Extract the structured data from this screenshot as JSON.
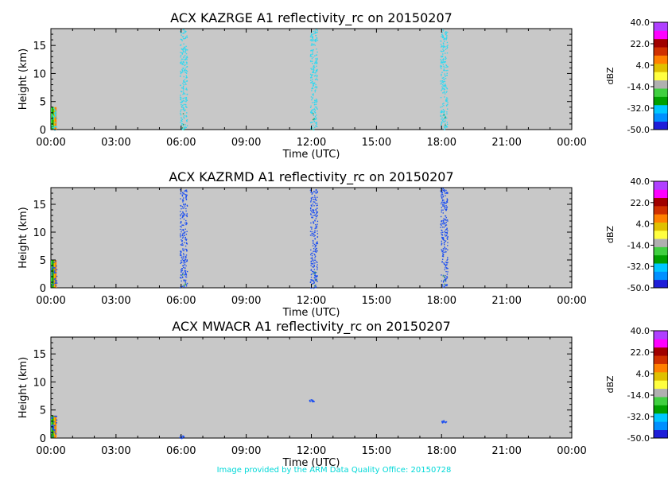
{
  "colorbar": {
    "unit": "dBZ",
    "ticks": [
      "40.0",
      "22.0",
      "4.0",
      "-14.0",
      "-32.0",
      "-50.0"
    ],
    "colors": [
      "#1e1ed8",
      "#0090ff",
      "#00c8ff",
      "#00a000",
      "#40d040",
      "#b0b0b0",
      "#ffff40",
      "#e0c000",
      "#ff8000",
      "#d03000",
      "#a00000",
      "#ff00ff",
      "#b040ff"
    ]
  },
  "credit": "Image provided by the ARM Data Quality Office: 20150728",
  "chart_data": [
    {
      "type": "heatmap",
      "title": "ACX KAZRGE A1 reflectivity_rc on 20150207",
      "xlabel": "Time (UTC)",
      "ylabel": "Height (km)",
      "xticks": [
        "00:00",
        "03:00",
        "06:00",
        "09:00",
        "12:00",
        "15:00",
        "18:00",
        "21:00",
        "00:00"
      ],
      "xlim": [
        0,
        24
      ],
      "ylim": [
        0,
        18
      ],
      "yticks": [
        "0",
        "5",
        "10",
        "15"
      ],
      "background": "#c8c8c8",
      "point_color": "#30d8f0",
      "features": [
        {
          "time_range": [
            0.0,
            0.25
          ],
          "height_range": [
            0,
            4
          ],
          "description": "near-surface echo"
        },
        {
          "time_center": 6.1,
          "height_range": [
            0,
            18
          ]
        },
        {
          "time_center": 12.1,
          "height_range": [
            0,
            18
          ]
        },
        {
          "time_center": 18.1,
          "height_range": [
            0,
            18
          ]
        }
      ]
    },
    {
      "type": "heatmap",
      "title": "ACX KAZRMD A1 reflectivity_rc on 20150207",
      "xlabel": "Time (UTC)",
      "ylabel": "Height (km)",
      "xticks": [
        "00:00",
        "03:00",
        "06:00",
        "09:00",
        "12:00",
        "15:00",
        "18:00",
        "21:00",
        "00:00"
      ],
      "xlim": [
        0,
        24
      ],
      "ylim": [
        0,
        18
      ],
      "yticks": [
        "0",
        "5",
        "10",
        "15"
      ],
      "background": "#c8c8c8",
      "point_color": "#1e50f0",
      "features": [
        {
          "time_range": [
            0.0,
            0.25
          ],
          "height_range": [
            0,
            5
          ]
        },
        {
          "time_center": 6.1,
          "height_range": [
            0,
            18
          ]
        },
        {
          "time_center": 12.1,
          "height_range": [
            0,
            18
          ]
        },
        {
          "time_center": 18.1,
          "height_range": [
            0,
            18
          ]
        }
      ]
    },
    {
      "type": "heatmap",
      "title": "ACX MWACR A1 reflectivity_rc on 20150207",
      "xlabel": "Time (UTC)",
      "ylabel": "Height (km)",
      "xticks": [
        "00:00",
        "03:00",
        "06:00",
        "09:00",
        "12:00",
        "15:00",
        "18:00",
        "21:00",
        "00:00"
      ],
      "xlim": [
        0,
        24
      ],
      "ylim": [
        0,
        18
      ],
      "yticks": [
        "0",
        "5",
        "10",
        "15"
      ],
      "background": "#c8c8c8",
      "point_color": "#1e50f0",
      "features": [
        {
          "time_range": [
            0.0,
            0.25
          ],
          "height_range": [
            0,
            4
          ]
        },
        {
          "time_center": 6.0,
          "height_range": [
            0,
            0.5
          ]
        },
        {
          "time_center": 12.0,
          "height_range": [
            6.5,
            7.0
          ]
        },
        {
          "time_center": 18.1,
          "height_range": [
            2.7,
            3.2
          ]
        }
      ]
    }
  ]
}
